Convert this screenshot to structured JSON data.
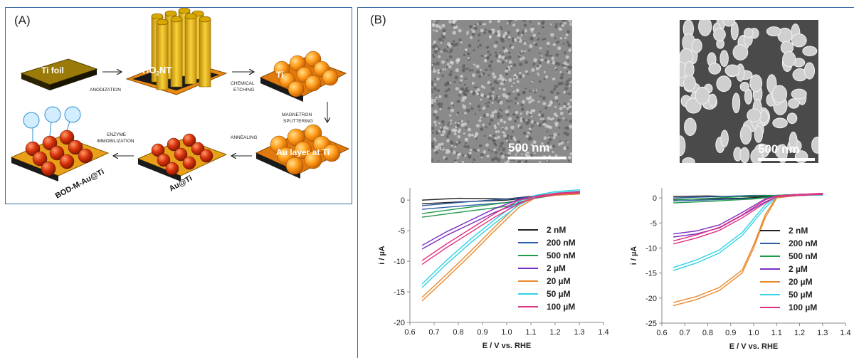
{
  "panel_a": {
    "label": "(A)",
    "stage_labels": {
      "ti_foil": "Ti foil",
      "tio2nt_prefix": "TiO",
      "tio2nt_sub": "2",
      "tio2nt_suffix": "NT",
      "ti": "Ti",
      "au_layer": "Au layer at Ti",
      "au_ti": "Au@Ti",
      "bod": "BOD-M-Au@Ti"
    },
    "step_labels": {
      "anodization": "ANODIZATION",
      "chemical_1": "CHEMICAL",
      "chemical_2": "ETCHING",
      "magnetron_1": "MAGNETRON",
      "magnetron_2": "SPUTTERING",
      "annealing": "ANNEALING",
      "enzyme_1": "ENZYME",
      "enzyme_2": "IMMOBILIZATION"
    }
  },
  "panel_b": {
    "label": "(B)",
    "sem_left_scale": "500 nm",
    "sem_right_scale": "500 nm"
  },
  "chart_data": [
    {
      "type": "line",
      "xlabel": "E / V vs. RHE",
      "ylabel": "i / µA",
      "xlim": [
        0.6,
        1.4
      ],
      "ylim": [
        -20,
        2
      ],
      "xticks": [
        "0.6",
        "0.7",
        "0.8",
        "0.9",
        "1.0",
        "1.1",
        "1.2",
        "1.3",
        "1.4"
      ],
      "yticks": [
        "0",
        "-5",
        "-10",
        "-15",
        "-20"
      ],
      "legend_position": "bottom-right",
      "series": [
        {
          "name": "2 nM",
          "color": "#222222",
          "x": [
            0.65,
            0.8,
            1.0,
            1.1,
            1.2,
            1.3
          ],
          "y": [
            -0.6,
            -0.3,
            0.0,
            0.4,
            0.9,
            1.2
          ]
        },
        {
          "name": "200 nM",
          "color": "#2f5da8",
          "x": [
            0.65,
            0.8,
            1.0,
            1.1,
            1.2,
            1.3
          ],
          "y": [
            -1.5,
            -1.0,
            -0.4,
            0.3,
            0.9,
            1.1
          ]
        },
        {
          "name": "500 nM",
          "color": "#1f9a4a",
          "x": [
            0.65,
            0.8,
            1.0,
            1.1,
            1.2,
            1.3
          ],
          "y": [
            -2.8,
            -2.0,
            -1.0,
            0.2,
            0.8,
            1.0
          ]
        },
        {
          "name": "2 µM",
          "color": "#7b2fbf",
          "x": [
            0.65,
            0.75,
            0.85,
            0.95,
            1.05,
            1.12,
            1.2,
            1.3
          ],
          "y": [
            -8.0,
            -5.8,
            -3.9,
            -2.0,
            -0.5,
            0.5,
            0.9,
            1.1
          ]
        },
        {
          "name": "20 µM",
          "color": "#e8892c",
          "x": [
            0.65,
            0.75,
            0.85,
            0.95,
            1.05,
            1.12,
            1.2,
            1.3
          ],
          "y": [
            -16.5,
            -12.8,
            -9.0,
            -5.0,
            -1.2,
            0.4,
            0.8,
            1.0
          ]
        },
        {
          "name": "50 µM",
          "color": "#34d3e6",
          "x": [
            0.65,
            0.75,
            0.85,
            0.95,
            1.05,
            1.12,
            1.2,
            1.3
          ],
          "y": [
            -14.3,
            -10.5,
            -7.0,
            -3.8,
            -0.8,
            0.6,
            1.2,
            1.5
          ]
        },
        {
          "name": "100 µM",
          "color": "#e0307f",
          "x": [
            0.65,
            0.75,
            0.85,
            0.95,
            1.05,
            1.12,
            1.2,
            1.3
          ],
          "y": [
            -10.5,
            -7.8,
            -5.3,
            -2.8,
            -0.6,
            0.4,
            0.9,
            1.2
          ]
        }
      ]
    },
    {
      "type": "line",
      "xlabel": "E / V vs. RHE",
      "ylabel": "i / µA",
      "xlim": [
        0.6,
        1.4
      ],
      "ylim": [
        -25,
        2
      ],
      "xticks": [
        "0.6",
        "0.7",
        "0.8",
        "0.9",
        "1.0",
        "1.1",
        "1.2",
        "1.3",
        "1.4"
      ],
      "yticks": [
        "0",
        "-5",
        "-10",
        "-15",
        "-20",
        "-25"
      ],
      "legend_position": "bottom-right",
      "series": [
        {
          "name": "2 nM",
          "color": "#222222",
          "x": [
            0.65,
            0.8,
            1.0,
            1.1,
            1.2,
            1.3
          ],
          "y": [
            -0.3,
            -0.2,
            0.0,
            0.3,
            0.5,
            0.6
          ]
        },
        {
          "name": "200 nM",
          "color": "#2f5da8",
          "x": [
            0.65,
            0.8,
            1.0,
            1.1,
            1.2,
            1.3
          ],
          "y": [
            -0.6,
            -0.4,
            -0.1,
            0.3,
            0.5,
            0.6
          ]
        },
        {
          "name": "500 nM",
          "color": "#1f9a4a",
          "x": [
            0.65,
            0.8,
            1.0,
            1.1,
            1.2,
            1.3
          ],
          "y": [
            -1.0,
            -0.7,
            -0.2,
            0.3,
            0.5,
            0.6
          ]
        },
        {
          "name": "2 µM",
          "color": "#7b2fbf",
          "x": [
            0.65,
            0.75,
            0.85,
            0.95,
            1.05,
            1.1,
            1.2,
            1.3
          ],
          "y": [
            -7.8,
            -7.2,
            -6.0,
            -3.5,
            -0.8,
            0.2,
            0.5,
            0.7
          ]
        },
        {
          "name": "20 µM",
          "color": "#e8892c",
          "x": [
            0.65,
            0.75,
            0.85,
            0.95,
            1.0,
            1.05,
            1.1,
            1.2,
            1.3
          ],
          "y": [
            -21.5,
            -20.3,
            -18.5,
            -15.0,
            -10.0,
            -4.0,
            0.0,
            0.5,
            0.6
          ]
        },
        {
          "name": "50 µM",
          "color": "#34d3e6",
          "x": [
            0.65,
            0.75,
            0.85,
            0.95,
            1.05,
            1.1,
            1.2,
            1.3
          ],
          "y": [
            -14.5,
            -13.0,
            -11.0,
            -7.5,
            -2.0,
            0.2,
            0.5,
            0.6
          ]
        },
        {
          "name": "100 µM",
          "color": "#e0307f",
          "x": [
            0.65,
            0.75,
            0.85,
            0.95,
            1.05,
            1.1,
            1.2,
            1.3
          ],
          "y": [
            -9.2,
            -8.0,
            -6.5,
            -4.0,
            -1.0,
            0.2,
            0.5,
            0.7
          ]
        }
      ]
    }
  ]
}
